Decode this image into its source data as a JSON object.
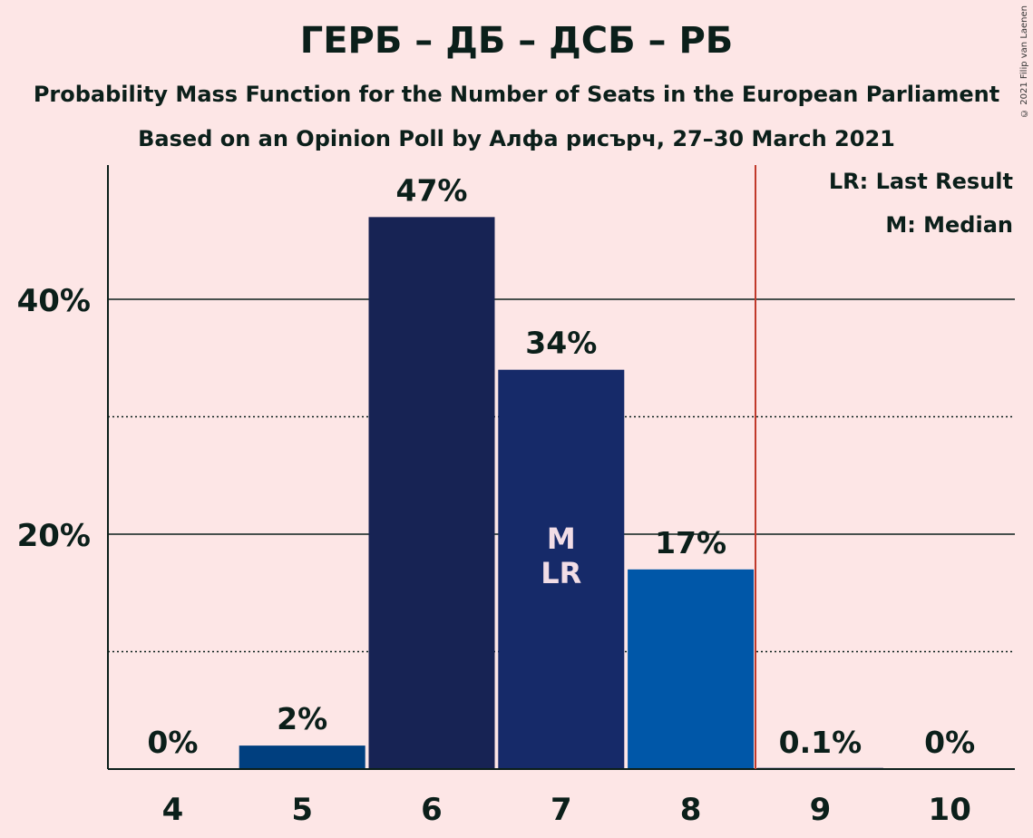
{
  "title": "ГЕРБ – ДБ – ДСБ – РБ",
  "subtitle_1": "Probability Mass Function for the Number of Seats in the European Parliament",
  "subtitle_2": "Based on an Opinion Poll by Алфа рисърч, 27–30 March 2021",
  "copyright": "© 2021 Filip van Laenen",
  "legend": {
    "last_result": "LR: Last Result",
    "median": "M: Median"
  },
  "chart_data": {
    "type": "bar",
    "categories": [
      "4",
      "5",
      "6",
      "7",
      "8",
      "9",
      "10"
    ],
    "values": [
      0,
      2,
      47,
      34,
      17,
      0.1,
      0
    ],
    "value_labels": [
      "0%",
      "2%",
      "47%",
      "34%",
      "17%",
      "0.1%",
      "0%"
    ],
    "bar_colors": [
      "#1E2F6E",
      "#003F7F",
      "#172354",
      "#162A69",
      "#0057A8",
      "#1E2F6E",
      "#1E2F6E"
    ],
    "y_ticks": [
      20,
      40
    ],
    "y_tick_labels": [
      "20%",
      "40%"
    ],
    "y_minor_ticks": [
      10,
      30
    ],
    "ylim": [
      0,
      52
    ],
    "median_category": "7",
    "last_result_category": "7",
    "median_marker": "M",
    "last_result_marker": "LR",
    "majority_line_after_category": "8",
    "majority_line_color": "#C0392B"
  }
}
